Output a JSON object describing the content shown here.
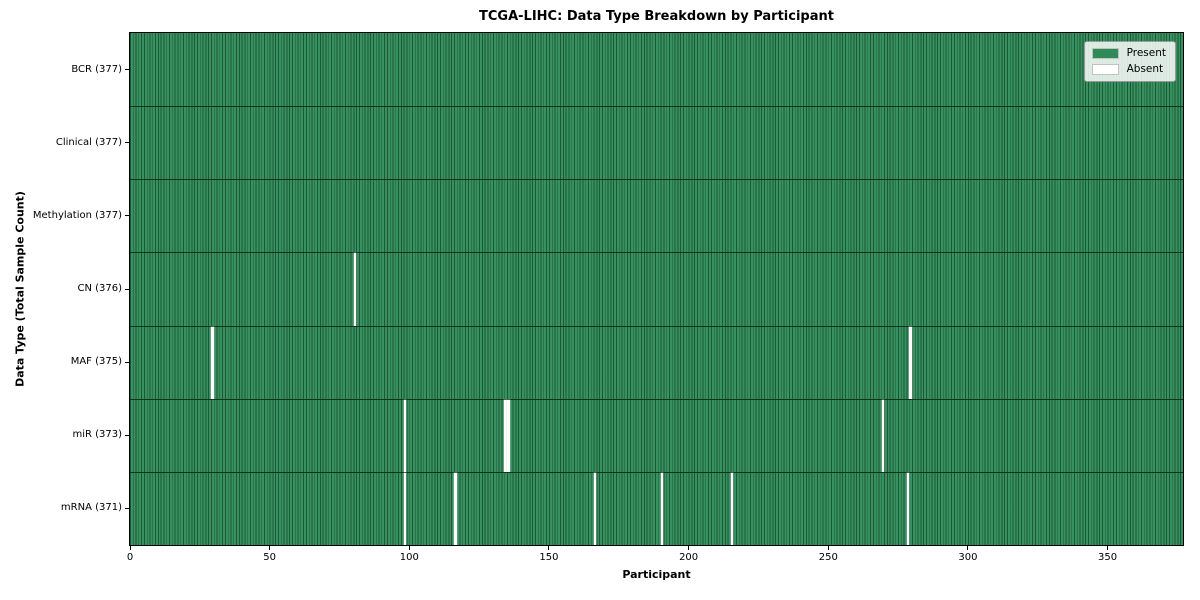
{
  "chart_data": {
    "type": "heatmap",
    "title": "TCGA-LIHC: Data Type Breakdown by Participant",
    "xlabel": "Participant",
    "ylabel": "Data Type (Total Sample Count)",
    "x_ticks": [
      0,
      50,
      100,
      150,
      200,
      250,
      300,
      350
    ],
    "x_range": [
      0,
      377
    ],
    "n_participants": 377,
    "grid": false,
    "colors": {
      "present": "#2e8b57",
      "absent": "#ffffff",
      "cell_edge": "#10331f",
      "frame": "#000000"
    },
    "legend": {
      "position": "upper-right",
      "entries": [
        {
          "label": "Present",
          "color": "#2e8b57"
        },
        {
          "label": "Absent",
          "color": "#ffffff"
        }
      ]
    },
    "rows": [
      {
        "label": "BCR (377)",
        "data_type": "BCR",
        "present_count": 377,
        "absent_participants": []
      },
      {
        "label": "Clinical (377)",
        "data_type": "Clinical",
        "present_count": 377,
        "absent_participants": []
      },
      {
        "label": "Methylation (377)",
        "data_type": "Methylation",
        "present_count": 377,
        "absent_participants": []
      },
      {
        "label": "CN (376)",
        "data_type": "CN",
        "present_count": 376,
        "absent_participants": [
          80
        ]
      },
      {
        "label": "MAF (375)",
        "data_type": "MAF",
        "present_count": 375,
        "absent_participants": [
          29,
          279
        ]
      },
      {
        "label": "miR (373)",
        "data_type": "miR",
        "present_count": 373,
        "absent_participants": [
          98,
          134,
          135,
          269
        ]
      },
      {
        "label": "mRNA (371)",
        "data_type": "mRNA",
        "present_count": 371,
        "absent_participants": [
          98,
          116,
          166,
          190,
          215,
          278
        ]
      }
    ]
  }
}
